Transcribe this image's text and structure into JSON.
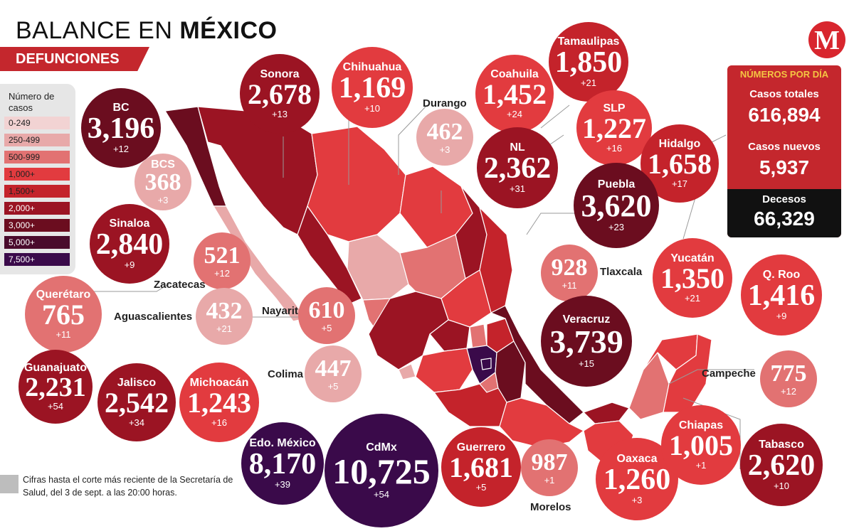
{
  "header": {
    "title_light": "BALANCE EN ",
    "title_bold": "MÉXICO",
    "subtitle": "DEFUNCIONES",
    "logo": "M"
  },
  "legend": {
    "title": "Número de casos",
    "items": [
      {
        "label": "0-249",
        "color": "#f2d3d3"
      },
      {
        "label": "250-499",
        "color": "#e8a9a9"
      },
      {
        "label": "500-999",
        "color": "#e27272"
      },
      {
        "label": "1,000+",
        "color": "#e23b3f"
      },
      {
        "label": "1,500+",
        "color": "#c4232b"
      },
      {
        "label": "2,000+",
        "color": "#9b1423"
      },
      {
        "label": "3,000+",
        "color": "#6b0d1f"
      },
      {
        "label": "5,000+",
        "color": "#4a0b2c"
      },
      {
        "label": "7,500+",
        "color": "#3a0a4a"
      }
    ]
  },
  "panel": {
    "heading": "NÚMEROS POR DÍA",
    "casos_totales_label": "Casos totales",
    "casos_totales_value": "616,894",
    "casos_nuevos_label": "Casos nuevos",
    "casos_nuevos_value": "5,937",
    "decesos_label": "Decesos",
    "decesos_value": "66,329"
  },
  "footnote": "Cifras hasta el corte más reciente de la Secretaría de Salud, del 3 de sept. a las 20:00 horas.",
  "states": {
    "bc": {
      "name": "BC",
      "value": "3,196",
      "inc": "+12",
      "color": "#6b0d1f"
    },
    "sonora": {
      "name": "Sonora",
      "value": "2,678",
      "inc": "+13",
      "color": "#9b1423"
    },
    "chihuahua": {
      "name": "Chihuahua",
      "value": "1,169",
      "inc": "+10",
      "color": "#e23b3f"
    },
    "durango": {
      "name": "Durango",
      "value": "462",
      "inc": "+3",
      "color": "#e8a9a9"
    },
    "coahuila": {
      "name": "Coahuila",
      "value": "1,452",
      "inc": "+24",
      "color": "#e23b3f"
    },
    "tamaulipas": {
      "name": "Tamaulipas",
      "value": "1,850",
      "inc": "+21",
      "color": "#c4232b"
    },
    "slp": {
      "name": "SLP",
      "value": "1,227",
      "inc": "+16",
      "color": "#e23b3f"
    },
    "nl": {
      "name": "NL",
      "value": "2,362",
      "inc": "+31",
      "color": "#9b1423"
    },
    "hidalgo": {
      "name": "Hidalgo",
      "value": "1,658",
      "inc": "+17",
      "color": "#c4232b"
    },
    "bcs": {
      "name": "BCS",
      "value": "368",
      "inc": "+3",
      "color": "#e8a9a9"
    },
    "sinaloa": {
      "name": "Sinaloa",
      "value": "2,840",
      "inc": "+9",
      "color": "#9b1423"
    },
    "zacatecas": {
      "name": "Zacatecas",
      "value": "521",
      "inc": "+12",
      "color": "#e27272"
    },
    "puebla": {
      "name": "Puebla",
      "value": "3,620",
      "inc": "+23",
      "color": "#6b0d1f"
    },
    "tlaxcala": {
      "name": "Tlaxcala",
      "value": "928",
      "inc": "+11",
      "color": "#e27272"
    },
    "yucatan": {
      "name": "Yucatán",
      "value": "1,350",
      "inc": "+21",
      "color": "#e23b3f"
    },
    "qroo": {
      "name": "Q. Roo",
      "value": "1,416",
      "inc": "+9",
      "color": "#e23b3f"
    },
    "queretaro": {
      "name": "Querétaro",
      "value": "765",
      "inc": "+11",
      "color": "#e27272"
    },
    "aguascalientes": {
      "name": "Aguascalientes",
      "value": "432",
      "inc": "+21",
      "color": "#e8a9a9"
    },
    "nayarit": {
      "name": "Nayarit",
      "value": "610",
      "inc": "+5",
      "color": "#e27272"
    },
    "veracruz": {
      "name": "Veracruz",
      "value": "3,739",
      "inc": "+15",
      "color": "#6b0d1f"
    },
    "guanajuato": {
      "name": "Guanajuato",
      "value": "2,231",
      "inc": "+54",
      "color": "#9b1423"
    },
    "jalisco": {
      "name": "Jalisco",
      "value": "2,542",
      "inc": "+34",
      "color": "#9b1423"
    },
    "michoacan": {
      "name": "Michoacán",
      "value": "1,243",
      "inc": "+16",
      "color": "#e23b3f"
    },
    "colima": {
      "name": "Colima",
      "value": "447",
      "inc": "+5",
      "color": "#e8a9a9"
    },
    "campeche": {
      "name": "Campeche",
      "value": "775",
      "inc": "+12",
      "color": "#e27272"
    },
    "edomex": {
      "name": "Edo. México",
      "value": "8,170",
      "inc": "+39",
      "color": "#3a0a4a"
    },
    "cdmx": {
      "name": "CdMx",
      "value": "10,725",
      "inc": "+54",
      "color": "#3a0a4a"
    },
    "guerrero": {
      "name": "Guerrero",
      "value": "1,681",
      "inc": "+5",
      "color": "#c4232b"
    },
    "morelos": {
      "name": "Morelos",
      "value": "987",
      "inc": "+1",
      "color": "#e27272"
    },
    "oaxaca": {
      "name": "Oaxaca",
      "value": "1,260",
      "inc": "+3",
      "color": "#e23b3f"
    },
    "chiapas": {
      "name": "Chiapas",
      "value": "1,005",
      "inc": "+1",
      "color": "#e23b3f"
    },
    "tabasco": {
      "name": "Tabasco",
      "value": "2,620",
      "inc": "+10",
      "color": "#9b1423"
    }
  }
}
